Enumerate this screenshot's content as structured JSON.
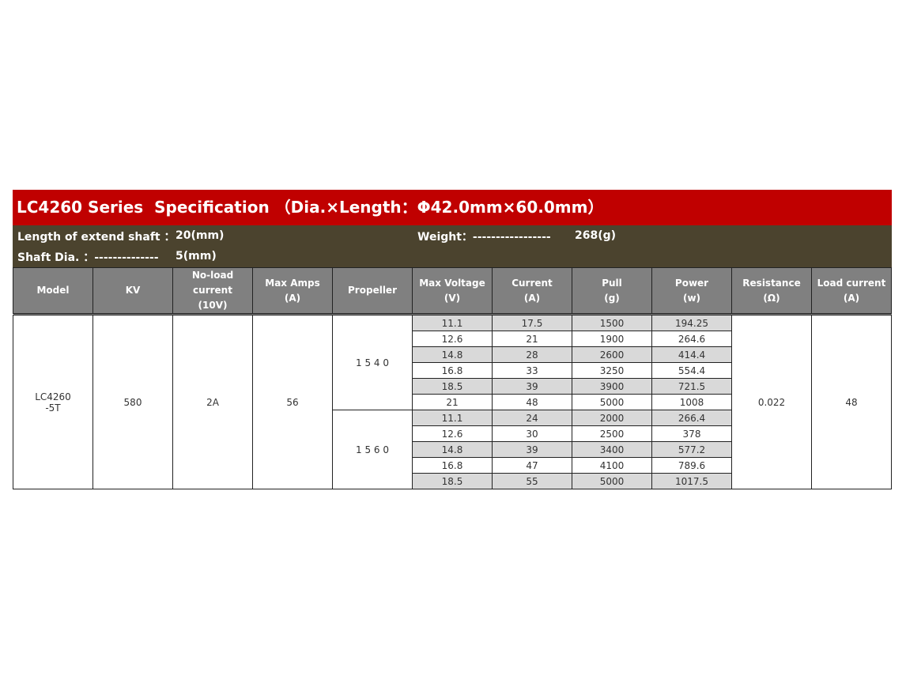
{
  "title": "LC4260 Series  Specification （Dia.×Length：Φ42.0mm×60.0mm）",
  "info": {
    "shaft_len_label": "Length of extend shaft ：",
    "shaft_len_value": "20(mm)",
    "weight_label": "Weight：-----------------",
    "weight_value": "268(g)",
    "shaft_dia_label": "Shaft Dia. ：--------------",
    "shaft_dia_value": "5(mm)"
  },
  "headers": [
    [
      "Model"
    ],
    [
      "KV"
    ],
    [
      "No-load",
      "current",
      "(10V)"
    ],
    [
      "Max Amps",
      "(A)"
    ],
    [
      "Propeller"
    ],
    [
      "Max Voltage",
      "(V)"
    ],
    [
      "Current",
      "(A)"
    ],
    [
      "Pull",
      "(g)"
    ],
    [
      "Power",
      "(w)"
    ],
    [
      "Resistance",
      "(Ω)"
    ],
    [
      "Load current",
      "(A)"
    ]
  ],
  "model": [
    "LC4260",
    "-5T"
  ],
  "kv": "580",
  "noload": "2A",
  "max_amps": "56",
  "resistance": "0.022",
  "load_current": "48",
  "propellers": [
    {
      "name": "1 5 4 0",
      "rows": [
        [
          "11.1",
          "17.5",
          "1500",
          "194.25"
        ],
        [
          "12.6",
          "21",
          "1900",
          "264.6"
        ],
        [
          "14.8",
          "28",
          "2600",
          "414.4"
        ],
        [
          "16.8",
          "33",
          "3250",
          "554.4"
        ],
        [
          "18.5",
          "39",
          "3900",
          "721.5"
        ],
        [
          "21",
          "48",
          "5000",
          "1008"
        ]
      ]
    },
    {
      "name": "1 5 6 0",
      "rows": [
        [
          "11.1",
          "24",
          "2000",
          "266.4"
        ],
        [
          "12.6",
          "30",
          "2500",
          "378"
        ],
        [
          "14.8",
          "39",
          "3400",
          "577.2"
        ],
        [
          "16.8",
          "47",
          "4100",
          "789.6"
        ],
        [
          "18.5",
          "55",
          "5000",
          "1017.5"
        ]
      ]
    }
  ]
}
